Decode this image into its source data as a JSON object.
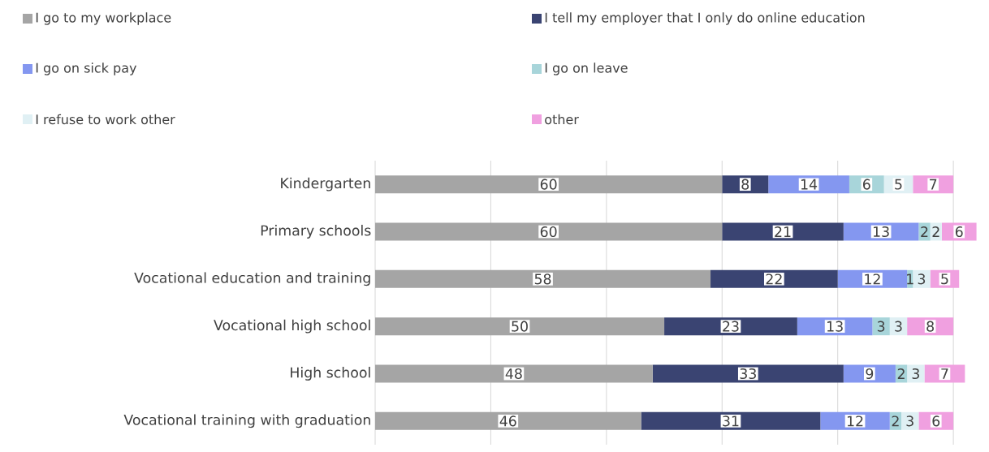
{
  "chart_data": {
    "type": "bar",
    "orientation": "horizontal",
    "stacked": true,
    "data_labels": true,
    "grid": "x",
    "tick_labels": "y",
    "legend": "top",
    "categories": [
      "Kindergarten",
      "Primary schools",
      "Vocational education and training",
      "Vocational high school",
      "High school",
      "Vocational training with graduation"
    ],
    "series": [
      {
        "name": "I go to my workplace",
        "color": "#a5a5a5",
        "values": [
          60,
          60,
          58,
          50,
          48,
          46
        ]
      },
      {
        "name": "I tell my employer that I only do online education",
        "color": "#3a4472",
        "values": [
          8,
          21,
          22,
          23,
          33,
          31
        ]
      },
      {
        "name": "I go on sick pay",
        "color": "#8497f0",
        "values": [
          14,
          13,
          12,
          13,
          9,
          12
        ]
      },
      {
        "name": "I go on leave",
        "color": "#a8d5da",
        "values": [
          6,
          2,
          1,
          3,
          2,
          2
        ]
      },
      {
        "name": "I refuse to work other",
        "color": "#e0f0f4",
        "values": [
          5,
          2,
          3,
          3,
          3,
          3
        ]
      },
      {
        "name": "other",
        "color": "#f0a0e0",
        "values": [
          7,
          6,
          5,
          8,
          7,
          6
        ]
      }
    ]
  }
}
